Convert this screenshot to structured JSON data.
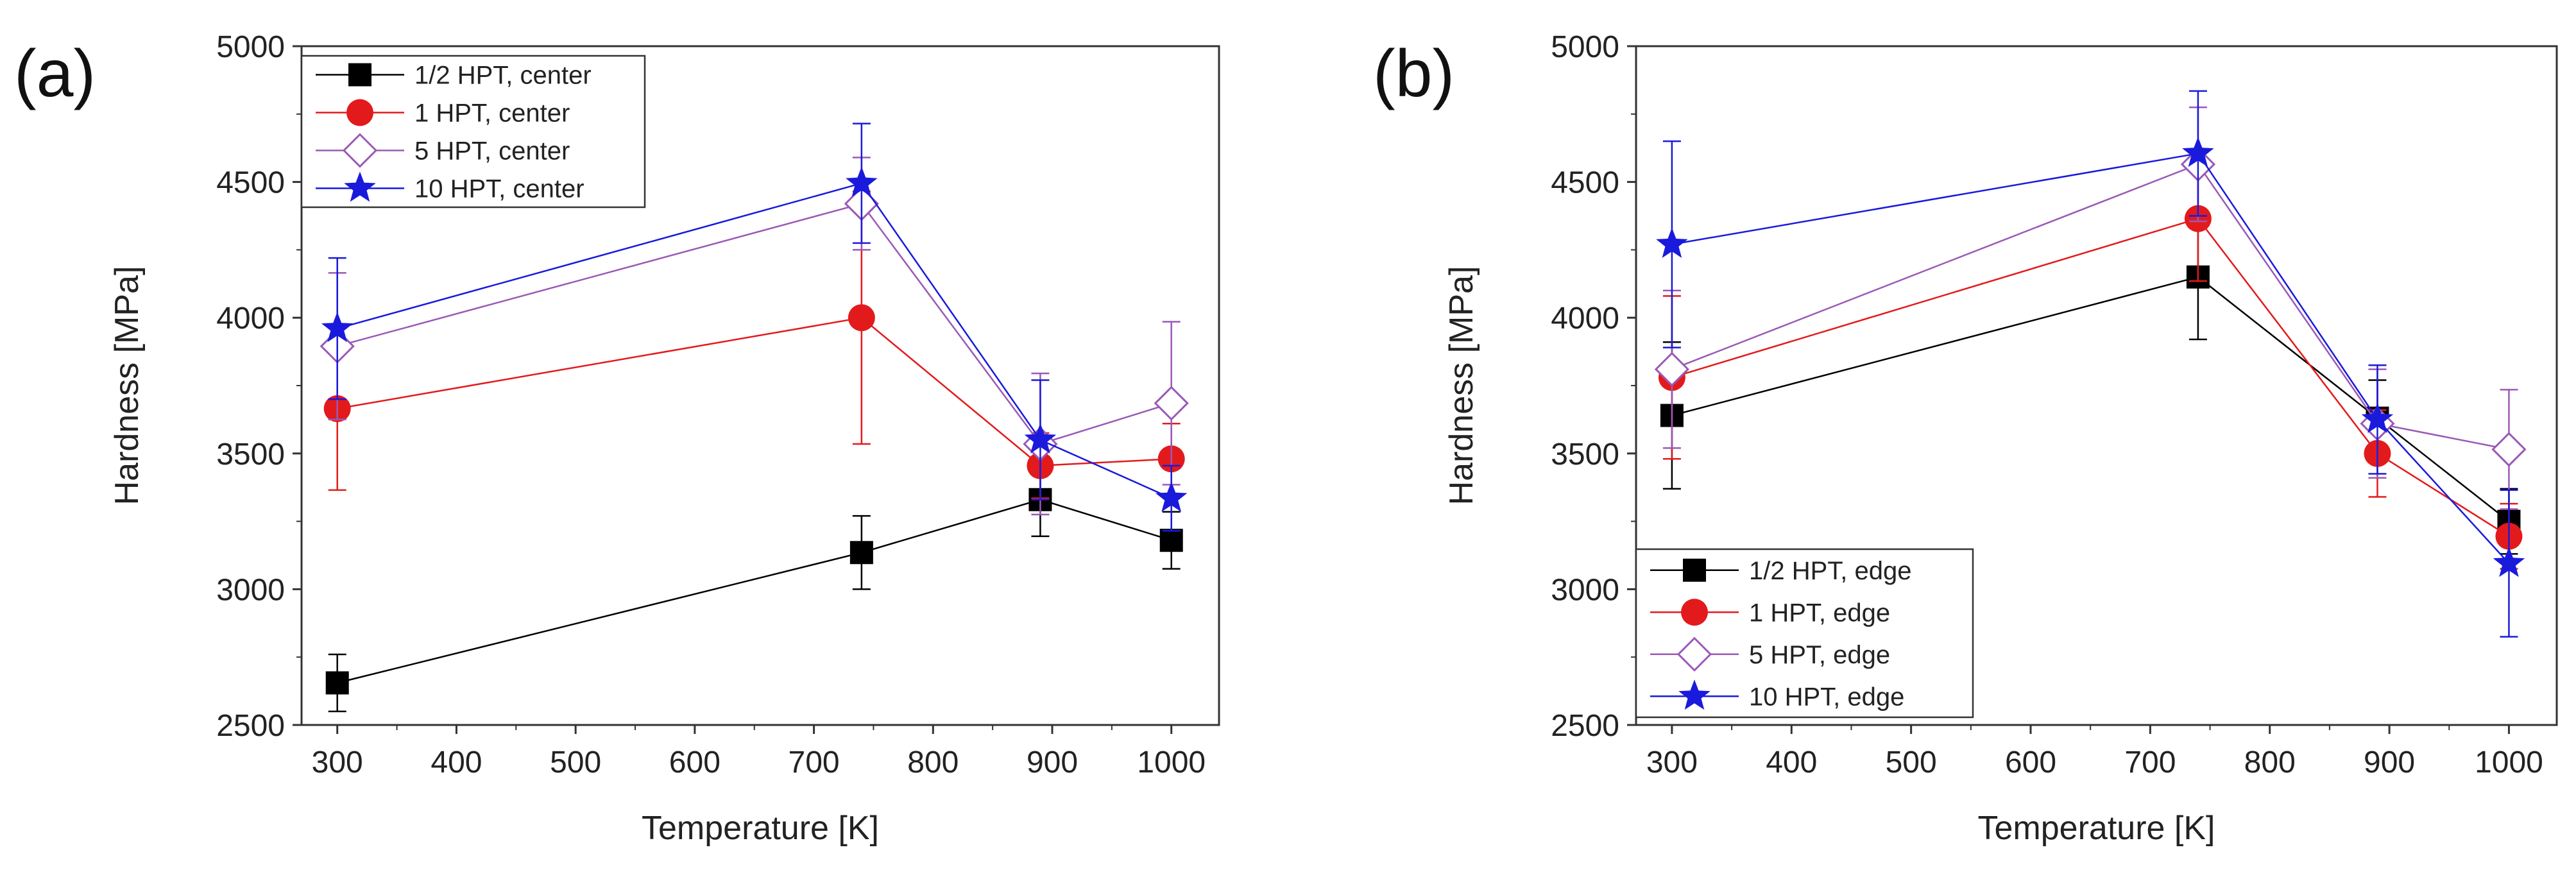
{
  "chart_data": [
    {
      "panel_label": "(a)",
      "type": "line",
      "xlabel": "Temperature [K]",
      "ylabel": "Hardness [MPa]",
      "xlim": [
        270,
        1040
      ],
      "ylim": [
        2500,
        5000
      ],
      "xticks": [
        300,
        400,
        500,
        600,
        700,
        800,
        900,
        1000
      ],
      "yticks": [
        2500,
        3000,
        3500,
        4000,
        4500,
        5000
      ],
      "legend_position": "top-left",
      "series": [
        {
          "name": "1/2 HPT, center",
          "marker": "square",
          "color": "#000000",
          "x": [
            300,
            740,
            890,
            1000
          ],
          "y": [
            2655,
            3135,
            3330,
            3180
          ],
          "err": [
            105,
            135,
            135,
            105
          ]
        },
        {
          "name": "1 HPT, center",
          "marker": "circle",
          "color": "#e31a1c",
          "x": [
            300,
            740,
            890,
            1000
          ],
          "y": [
            3665,
            4000,
            3455,
            3480
          ],
          "err": [
            300,
            465,
            120,
            130
          ]
        },
        {
          "name": "5 HPT, center",
          "marker": "diamond-open",
          "color": "#9b59b6",
          "x": [
            300,
            740,
            890,
            1000
          ],
          "y": [
            3895,
            4420,
            3535,
            3685
          ],
          "err": [
            270,
            170,
            260,
            300
          ]
        },
        {
          "name": "10 HPT, center",
          "marker": "star",
          "color": "#1a1adc",
          "x": [
            300,
            740,
            890,
            1000
          ],
          "y": [
            3960,
            4495,
            3550,
            3335
          ],
          "err": [
            260,
            220,
            220,
            120
          ]
        }
      ]
    },
    {
      "panel_label": "(b)",
      "type": "line",
      "xlabel": "Temperature [K]",
      "ylabel": "Hardness [MPa]",
      "xlim": [
        270,
        1040
      ],
      "ylim": [
        2500,
        5000
      ],
      "xticks": [
        300,
        400,
        500,
        600,
        700,
        800,
        900,
        1000
      ],
      "yticks": [
        2500,
        3000,
        3500,
        4000,
        4500,
        5000
      ],
      "legend_position": "bottom-left",
      "series": [
        {
          "name": "1/2 HPT, edge",
          "marker": "square",
          "color": "#000000",
          "x": [
            300,
            740,
            890,
            1000
          ],
          "y": [
            3640,
            4150,
            3630,
            3250
          ],
          "err": [
            270,
            230,
            140,
            120
          ]
        },
        {
          "name": "1 HPT, edge",
          "marker": "circle",
          "color": "#e31a1c",
          "x": [
            300,
            740,
            890,
            1000
          ],
          "y": [
            3780,
            4365,
            3500,
            3195
          ],
          "err": [
            300,
            230,
            160,
            120
          ]
        },
        {
          "name": "5 HPT, edge",
          "marker": "diamond-open",
          "color": "#9b59b6",
          "x": [
            300,
            740,
            890,
            1000
          ],
          "y": [
            3810,
            4565,
            3610,
            3515
          ],
          "err": [
            290,
            210,
            200,
            220
          ]
        },
        {
          "name": "10 HPT, edge",
          "marker": "star",
          "color": "#1a1adc",
          "x": [
            300,
            740,
            890,
            1000
          ],
          "y": [
            4270,
            4605,
            3625,
            3095
          ],
          "err": [
            380,
            230,
            200,
            270
          ]
        }
      ]
    }
  ]
}
